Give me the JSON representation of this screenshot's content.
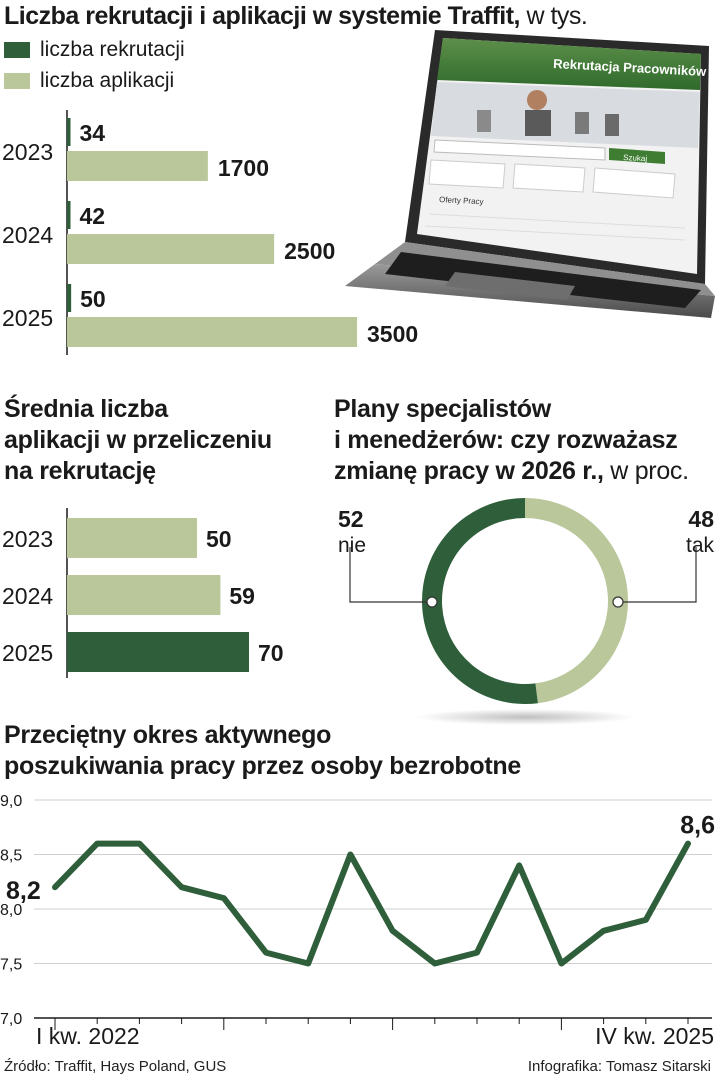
{
  "colors": {
    "dark": "#2e5f3a",
    "light": "#b9c79a",
    "text": "#1a1a1a",
    "grid": "#cfcfcf"
  },
  "section1": {
    "title": "Liczba rekrutacji i aplikacji w systemie Traffit,",
    "unit": " w tys.",
    "legend": [
      {
        "label": "liczba rekrutacji",
        "color": "#2e5f3a"
      },
      {
        "label": "liczba aplikacji",
        "color": "#b9c79a"
      }
    ],
    "laptop": {
      "site_title": "Rekrutacja Pracowników",
      "search_button": "Szukaj",
      "offers_heading": "Oferty Pracy"
    }
  },
  "section2": {
    "title_lines": [
      "Średnia liczba",
      "aplikacji w przeliczeniu",
      "na rekrutację"
    ]
  },
  "section3": {
    "title_lines": [
      "Plany specjalistów",
      "i menedżerów: czy rozważasz",
      "zmianę pracy w 2026 r.,"
    ],
    "unit": " w proc."
  },
  "section4": {
    "title_lines": [
      "Przeciętny okres aktywnego",
      "poszukiwania pracy przez osoby bezrobotne"
    ]
  },
  "footer": {
    "source": "Źródło: Traffit, Hays Poland, GUS",
    "credit": "Infografika: Tomasz Sitarski"
  },
  "chart_data": [
    {
      "type": "bar",
      "orientation": "horizontal",
      "categories": [
        "2023",
        "2024",
        "2025"
      ],
      "series": [
        {
          "name": "liczba rekrutacji",
          "values": [
            34,
            42,
            50
          ]
        },
        {
          "name": "liczba aplikacji",
          "values": [
            1700,
            2500,
            3500
          ]
        }
      ],
      "value_labels": {
        "liczba rekrutacji": [
          "34",
          "42",
          "50"
        ],
        "liczba aplikacji": [
          "1700",
          "2500",
          "3500"
        ]
      }
    },
    {
      "type": "bar",
      "orientation": "horizontal",
      "categories": [
        "2023",
        "2024",
        "2025"
      ],
      "values": [
        50,
        59,
        70
      ],
      "value_labels": [
        "50",
        "59",
        "70"
      ],
      "highlight": "2025"
    },
    {
      "type": "pie",
      "style": "donut",
      "slices": [
        {
          "label": "nie",
          "value": 52,
          "display": "52",
          "color": "#2e5f3a"
        },
        {
          "label": "tak",
          "value": 48,
          "display": "48",
          "color": "#b9c79a"
        }
      ]
    },
    {
      "type": "line",
      "ylim": [
        7.0,
        9.0
      ],
      "yticks": [
        "9,0",
        "8,5",
        "8,0",
        "7,5",
        "7,0"
      ],
      "ytick_values": [
        9.0,
        8.5,
        8.0,
        7.5,
        7.0
      ],
      "x_labels": [
        "I kw. 2022",
        "IV kw. 2025"
      ],
      "values": [
        8.2,
        8.6,
        8.6,
        8.2,
        8.1,
        7.6,
        7.5,
        8.5,
        7.8,
        7.5,
        7.6,
        8.4,
        7.5,
        7.8,
        7.9,
        8.6
      ],
      "start_label": "8,2",
      "end_label": "8,6",
      "grid": true
    }
  ]
}
